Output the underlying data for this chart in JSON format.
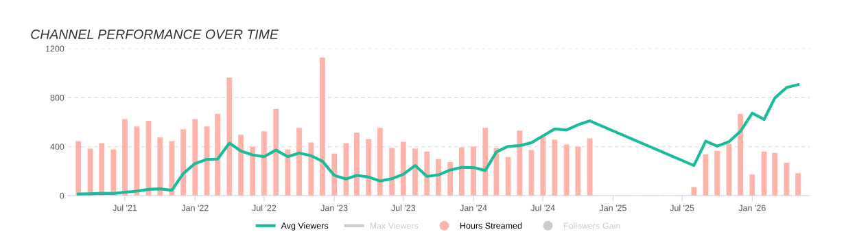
{
  "chart_data": {
    "type": "bar",
    "title": "CHANNEL PERFORMANCE OVER TIME",
    "xlim": [
      "2021-02",
      "2026-06"
    ],
    "xticks": [
      {
        "value": "2021-07",
        "label": "Jul '21"
      },
      {
        "value": "2022-01",
        "label": "Jan '22"
      },
      {
        "value": "2022-07",
        "label": "Jul '22"
      },
      {
        "value": "2023-01",
        "label": "Jan '23"
      },
      {
        "value": "2023-07",
        "label": "Jul '23"
      },
      {
        "value": "2024-01",
        "label": "Jan '24"
      },
      {
        "value": "2024-07",
        "label": "Jul '24"
      },
      {
        "value": "2025-01",
        "label": "Jan '25"
      },
      {
        "value": "2025-07",
        "label": "Jul '25"
      },
      {
        "value": "2026-01",
        "label": "Jan '26"
      }
    ],
    "ylim": [
      0,
      1200
    ],
    "yticks": [
      0,
      400,
      800,
      1200
    ],
    "grid": "y",
    "legend": "bottom",
    "series": [
      {
        "name": "Avg Viewers",
        "type": "line",
        "color": "#1abc9c",
        "x": [
          "2021-03",
          "2021-04",
          "2021-05",
          "2021-06",
          "2021-07",
          "2021-08",
          "2021-09",
          "2021-10",
          "2021-11",
          "2021-12",
          "2022-01",
          "2022-02",
          "2022-03",
          "2022-04",
          "2022-05",
          "2022-06",
          "2022-07",
          "2022-08",
          "2022-09",
          "2022-10",
          "2022-11",
          "2022-12",
          "2023-01",
          "2023-02",
          "2023-03",
          "2023-04",
          "2023-05",
          "2023-06",
          "2023-07",
          "2023-08",
          "2023-09",
          "2023-10",
          "2023-11",
          "2023-12",
          "2024-01",
          "2024-02",
          "2024-03",
          "2024-04",
          "2024-05",
          "2024-06",
          "2024-07",
          "2024-08",
          "2024-09",
          "2024-10",
          "2024-11",
          "2025-08",
          "2025-09",
          "2025-10",
          "2025-11",
          "2025-12",
          "2026-01",
          "2026-02",
          "2026-03",
          "2026-04",
          "2026-05"
        ],
        "values": [
          13,
          15,
          19,
          17,
          28,
          36,
          51,
          55,
          44,
          180,
          262,
          296,
          298,
          428,
          364,
          332,
          318,
          372,
          318,
          347,
          326,
          281,
          165,
          136,
          165,
          152,
          119,
          138,
          174,
          246,
          157,
          169,
          209,
          231,
          229,
          205,
          356,
          402,
          408,
          432,
          487,
          544,
          536,
          578,
          610,
          246,
          445,
          404,
          440,
          525,
          673,
          622,
          796,
          882,
          906
        ]
      },
      {
        "name": "Max Viewers",
        "type": "line",
        "color": "#cccccc"
      },
      {
        "name": "Hours Streamed",
        "color": "#ffb3ab",
        "x": [
          "2021-03",
          "2021-04",
          "2021-05",
          "2021-06",
          "2021-07",
          "2021-08",
          "2021-09",
          "2021-10",
          "2021-11",
          "2021-12",
          "2022-01",
          "2022-02",
          "2022-03",
          "2022-04",
          "2022-05",
          "2022-06",
          "2022-07",
          "2022-08",
          "2022-09",
          "2022-10",
          "2022-11",
          "2022-12",
          "2023-01",
          "2023-02",
          "2023-03",
          "2023-04",
          "2023-05",
          "2023-06",
          "2023-07",
          "2023-08",
          "2023-09",
          "2023-10",
          "2023-11",
          "2023-12",
          "2024-01",
          "2024-02",
          "2024-03",
          "2024-04",
          "2024-05",
          "2024-06",
          "2024-07",
          "2024-08",
          "2024-09",
          "2024-10",
          "2024-11",
          "2025-08",
          "2025-09",
          "2025-10",
          "2025-11",
          "2025-12",
          "2026-01",
          "2026-02",
          "2026-03",
          "2026-04",
          "2026-05"
        ],
        "values": [
          445,
          383,
          428,
          377,
          625,
          565,
          610,
          474,
          445,
          542,
          625,
          565,
          667,
          963,
          497,
          400,
          525,
          707,
          377,
          553,
          434,
          1128,
          343,
          428,
          514,
          462,
          553,
          389,
          440,
          383,
          360,
          298,
          275,
          394,
          400,
          553,
          389,
          315,
          531,
          372,
          480,
          457,
          417,
          400,
          468,
          70,
          337,
          366,
          423,
          667,
          172,
          360,
          349,
          269,
          184
        ]
      },
      {
        "name": "Followers Gain",
        "color": "#cccccc"
      }
    ]
  }
}
